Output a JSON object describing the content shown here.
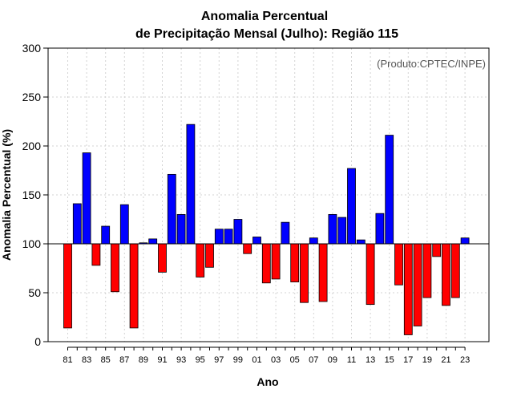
{
  "chart_data": {
    "type": "bar",
    "title_line1": "Anomalia Percentual",
    "title_line2": "de Precipitação Mensal (Julho): Região 115",
    "xlabel": "Ano",
    "ylabel": "Anomalia Percentual (%)",
    "credit": "(Produto:CPTEC/INPE)",
    "baseline": 100,
    "ylim": [
      0,
      300
    ],
    "yticks": [
      0,
      50,
      100,
      150,
      200,
      250,
      300
    ],
    "ytick_labels": [
      "0",
      "50",
      "100",
      "150",
      "200",
      "250",
      "300"
    ],
    "categories": [
      "81",
      "82",
      "83",
      "84",
      "85",
      "86",
      "87",
      "88",
      "89",
      "90",
      "91",
      "92",
      "93",
      "94",
      "95",
      "96",
      "97",
      "98",
      "99",
      "00",
      "01",
      "02",
      "03",
      "04",
      "05",
      "06",
      "07",
      "08",
      "09",
      "10",
      "11",
      "12",
      "13",
      "14",
      "15",
      "16",
      "17",
      "18",
      "19",
      "20",
      "21",
      "22",
      "23"
    ],
    "values": [
      14,
      141,
      193,
      78,
      118,
      51,
      140,
      14,
      101,
      105,
      71,
      171,
      130,
      222,
      66,
      76,
      115,
      115,
      125,
      90,
      107,
      60,
      64,
      122,
      61,
      40,
      106,
      41,
      130,
      127,
      177,
      104,
      38,
      131,
      211,
      58,
      7,
      16,
      45,
      87,
      37,
      45,
      106
    ],
    "xtick_labels": [
      "81",
      "83",
      "85",
      "87",
      "89",
      "91",
      "93",
      "95",
      "97",
      "99",
      "01",
      "03",
      "05",
      "07",
      "09",
      "11",
      "13",
      "15",
      "17",
      "19",
      "21",
      "23"
    ],
    "colors": {
      "above": "#0000ff",
      "below": "#ff0000",
      "edge": "#000000",
      "grid": "#d3d3d3",
      "baseline": "#000000"
    }
  }
}
